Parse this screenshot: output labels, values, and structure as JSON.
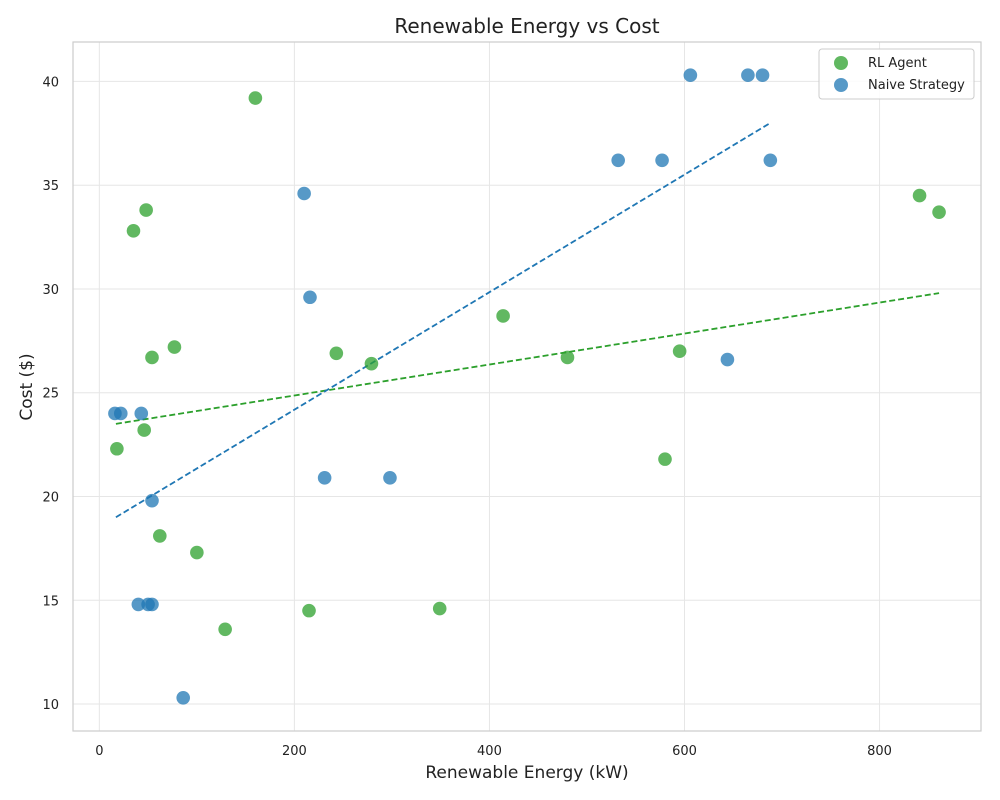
{
  "chart_data": {
    "type": "scatter",
    "title": "Renewable Energy vs Cost",
    "xlabel": "Renewable Energy (kW)",
    "ylabel": "Cost ($)",
    "xlim": [
      -27,
      904
    ],
    "ylim": [
      8.7,
      41.9
    ],
    "xticks": [
      0,
      200,
      400,
      600,
      800
    ],
    "yticks": [
      10,
      15,
      20,
      25,
      30,
      35,
      40
    ],
    "grid": true,
    "legend_position": "top-right",
    "series": [
      {
        "name": "RL Agent",
        "color": "#2ca02c",
        "points": [
          [
            160,
            39.2
          ],
          [
            48,
            33.8
          ],
          [
            35,
            32.8
          ],
          [
            77,
            27.2
          ],
          [
            54,
            26.7
          ],
          [
            243,
            26.9
          ],
          [
            279,
            26.4
          ],
          [
            46,
            23.2
          ],
          [
            18,
            22.3
          ],
          [
            62,
            18.1
          ],
          [
            100,
            17.3
          ],
          [
            129,
            13.6
          ],
          [
            215,
            14.5
          ],
          [
            349,
            14.6
          ],
          [
            414,
            28.7
          ],
          [
            480,
            26.7
          ],
          [
            595,
            27.0
          ],
          [
            580,
            21.8
          ],
          [
            841,
            34.5
          ],
          [
            861,
            33.7
          ]
        ],
        "trend": {
          "x": [
            17,
            861
          ],
          "y": [
            23.5,
            29.8
          ]
        }
      },
      {
        "name": "Naive Strategy",
        "color": "#1f77b4",
        "points": [
          [
            606,
            40.3
          ],
          [
            665,
            40.3
          ],
          [
            680,
            40.3
          ],
          [
            532,
            36.2
          ],
          [
            577,
            36.2
          ],
          [
            688,
            36.2
          ],
          [
            210,
            34.6
          ],
          [
            216,
            29.6
          ],
          [
            644,
            26.6
          ],
          [
            16,
            24.0
          ],
          [
            22,
            24.0
          ],
          [
            43,
            24.0
          ],
          [
            54,
            19.8
          ],
          [
            231,
            20.9
          ],
          [
            298,
            20.9
          ],
          [
            40,
            14.8
          ],
          [
            50,
            14.8
          ],
          [
            54,
            14.8
          ],
          [
            86,
            10.3
          ]
        ],
        "trend": {
          "x": [
            17,
            688
          ],
          "y": [
            19.0,
            38.0
          ]
        }
      }
    ]
  }
}
